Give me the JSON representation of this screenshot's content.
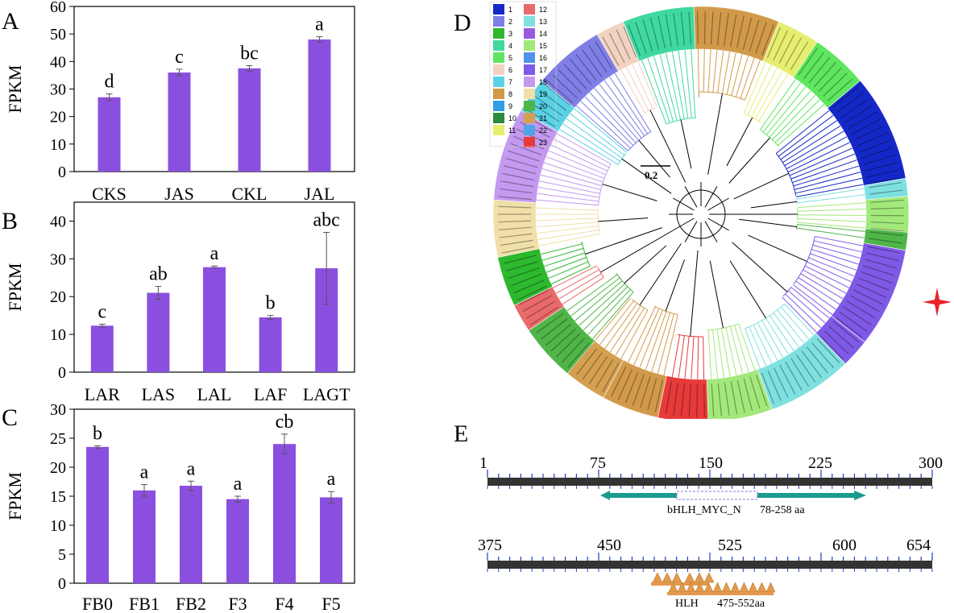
{
  "panels": {
    "A": "A",
    "B": "B",
    "C": "C",
    "D": "D",
    "E": "E"
  },
  "colors": {
    "bar": "#8B4FE0",
    "axis": "#000000",
    "ruler": "#333333",
    "tick": "#1f3fbf",
    "domain_teal": "#1a9b8f",
    "domain_orange": "#e39a4d",
    "star": "#e8232a"
  },
  "chart_data": [
    {
      "id": "A",
      "type": "bar",
      "ylabel": "FPKM",
      "ylim": [
        0,
        60
      ],
      "yticks": [
        0,
        10,
        20,
        30,
        40,
        50,
        60
      ],
      "categories": [
        "CKS",
        "JAS",
        "CKL",
        "JAL"
      ],
      "values": [
        27,
        36,
        37.5,
        48
      ],
      "errors": [
        1.2,
        1.2,
        1,
        1
      ],
      "letters": [
        "d",
        "c",
        "bc",
        "a"
      ]
    },
    {
      "id": "B",
      "type": "bar",
      "ylabel": "FPKM",
      "ylim": [
        0,
        45
      ],
      "yticks": [
        0,
        10,
        20,
        30,
        40
      ],
      "categories": [
        "LAR",
        "LAS",
        "LAL",
        "LAF",
        "LAGT"
      ],
      "values": [
        12.3,
        21,
        27.8,
        14.5,
        27.5
      ],
      "errors": [
        0.4,
        1.7,
        0.3,
        0.5,
        9.5
      ],
      "letters": [
        "c",
        "ab",
        "a",
        "b",
        "abc"
      ]
    },
    {
      "id": "C",
      "type": "bar",
      "ylabel": "FPKM",
      "ylim": [
        0,
        30
      ],
      "yticks": [
        0,
        5,
        10,
        15,
        20,
        25,
        30
      ],
      "categories": [
        "FB0",
        "FB1",
        "FB2",
        "F3",
        "F4",
        "F5"
      ],
      "values": [
        23.5,
        16,
        16.8,
        14.5,
        24,
        14.8
      ],
      "errors": [
        0.2,
        1,
        0.8,
        0.5,
        1.7,
        1
      ],
      "letters": [
        "b",
        "a",
        "a",
        "a",
        "cb",
        "a"
      ]
    }
  ],
  "tree": {
    "scale_label": "0.2",
    "legend": [
      {
        "n": "1",
        "color": "#1428c8"
      },
      {
        "n": "2",
        "color": "#7f7fe6"
      },
      {
        "n": "3",
        "color": "#2eb82e"
      },
      {
        "n": "4",
        "color": "#3fd9a0"
      },
      {
        "n": "5",
        "color": "#5ee65e"
      },
      {
        "n": "6",
        "color": "#f2d2c0"
      },
      {
        "n": "7",
        "color": "#5ad2e6"
      },
      {
        "n": "8",
        "color": "#d19a4a"
      },
      {
        "n": "9",
        "color": "#2f9ee0"
      },
      {
        "n": "10",
        "color": "#2b8a3e"
      },
      {
        "n": "11",
        "color": "#e6ee70"
      },
      {
        "n": "12",
        "color": "#e86a6a"
      },
      {
        "n": "13",
        "color": "#7fe0e0"
      },
      {
        "n": "14",
        "color": "#9a5ae0"
      },
      {
        "n": "15",
        "color": "#a3e87a"
      },
      {
        "n": "16",
        "color": "#4f94e8"
      },
      {
        "n": "17",
        "color": "#7f5ae6"
      },
      {
        "n": "18",
        "color": "#c39af0"
      },
      {
        "n": "19",
        "color": "#f0dfa8"
      },
      {
        "n": "20",
        "color": "#4fb548"
      },
      {
        "n": "21",
        "color": "#d4a050"
      },
      {
        "n": "22",
        "color": "#4fa3e8"
      },
      {
        "n": "23",
        "color": "#e83a3a"
      }
    ]
  },
  "domains": {
    "ruler1_ticks": [
      "1",
      "75",
      "150",
      "225",
      "300"
    ],
    "ruler2_ticks": [
      "375",
      "450",
      "525",
      "600",
      "654"
    ],
    "domain1_name": "bHLH_MYC_N",
    "domain1_range": "78-258 aa",
    "domain2_name": "HLH",
    "domain2_range": "475-552aa"
  }
}
